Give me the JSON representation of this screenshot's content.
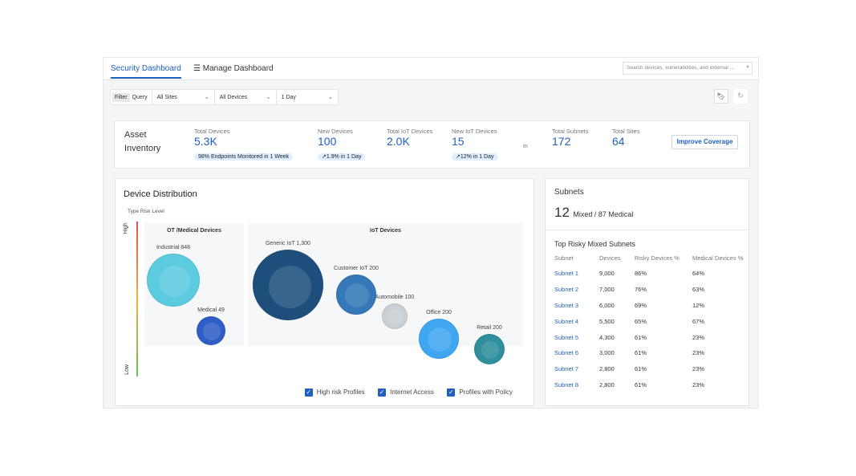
{
  "header": {
    "tabs": [
      {
        "label": "Security Dashboard",
        "active": true
      },
      {
        "label": "Manage Dashboard"
      }
    ],
    "search_placeholder": "Search devices, vulnerabilities, and external ...",
    "search_icon": "search-icon"
  },
  "filters": {
    "filter_label": "Filter",
    "query_label": "Query",
    "site": "All Sites",
    "devices": "All Devices",
    "range": "1 Day"
  },
  "asset_inventory": {
    "title_line1": "Asset",
    "title_line2": "Inventory",
    "metrics": [
      {
        "label": "Total Devices",
        "value": "5.3K",
        "badge": "98% Endpoints Monitored in 1 Week"
      },
      {
        "label": "New Devices",
        "value": "100",
        "badge": "↗1.9% in 1 Day"
      },
      {
        "label": "Total IoT Devices",
        "value": "2.0K"
      },
      {
        "label": "New IoT Devices",
        "value": "15",
        "badge": "↗12% in 1 Day"
      },
      {
        "label": "Total Subnets",
        "value": "172"
      },
      {
        "label": "Total Sites",
        "value": "64"
      }
    ],
    "in_label": "in",
    "improve_label": "Improve Coverage"
  },
  "device_distribution": {
    "title": "Device Distribution",
    "y_title": "Type Risk Level",
    "y_high": "High",
    "y_low": "Low",
    "groups": [
      "OT /Medical Devices",
      "IoT Devices"
    ],
    "bubbles": [
      {
        "label": "Industrial 848",
        "name": "Industrial",
        "count": 848,
        "color": "#5ccbe0"
      },
      {
        "label": "Medical 49",
        "name": "Medical",
        "count": 49,
        "color": "#2f5fc4"
      },
      {
        "label": "Generic IoT 1,300",
        "name": "Generic IoT",
        "count": 1300,
        "color": "#1e4f7c"
      },
      {
        "label": "Customer IoT 200",
        "name": "Customer IoT",
        "count": 200,
        "color": "#3478b8"
      },
      {
        "label": "Automobile 100",
        "name": "Automobile",
        "count": 100,
        "color": "#c9cfd3"
      },
      {
        "label": "Office 200",
        "name": "Office",
        "count": 200,
        "color": "#3fa6f0"
      },
      {
        "label": "Retail 200",
        "name": "Retail",
        "count": 200,
        "color": "#2f8f9c"
      }
    ],
    "legend": [
      "High risk Profiles",
      "Internet Access",
      "Profiles with Policy"
    ]
  },
  "subnets": {
    "title": "Subnets",
    "mixed_count": "12",
    "mixed_text": "Mixed / 87 Medical",
    "table_title": "Top Risky Mixed Subnets",
    "columns": [
      "Subnet",
      "Devices",
      "Risky Devices %",
      "Medical Devices %"
    ],
    "rows": [
      [
        "Subnet 1",
        "9,000",
        "86%",
        "64%"
      ],
      [
        "Subnet 2",
        "7,000",
        "76%",
        "63%"
      ],
      [
        "Subnet 3",
        "6,000",
        "69%",
        "12%"
      ],
      [
        "Subnet 4",
        "5,500",
        "65%",
        "67%"
      ],
      [
        "Subnet 5",
        "4,300",
        "61%",
        "23%"
      ],
      [
        "Subnet 6",
        "3,000",
        "61%",
        "23%"
      ],
      [
        "Subnet 7",
        "2,800",
        "61%",
        "23%"
      ],
      [
        "Subnet 8",
        "2,800",
        "61%",
        "23%"
      ]
    ]
  }
}
